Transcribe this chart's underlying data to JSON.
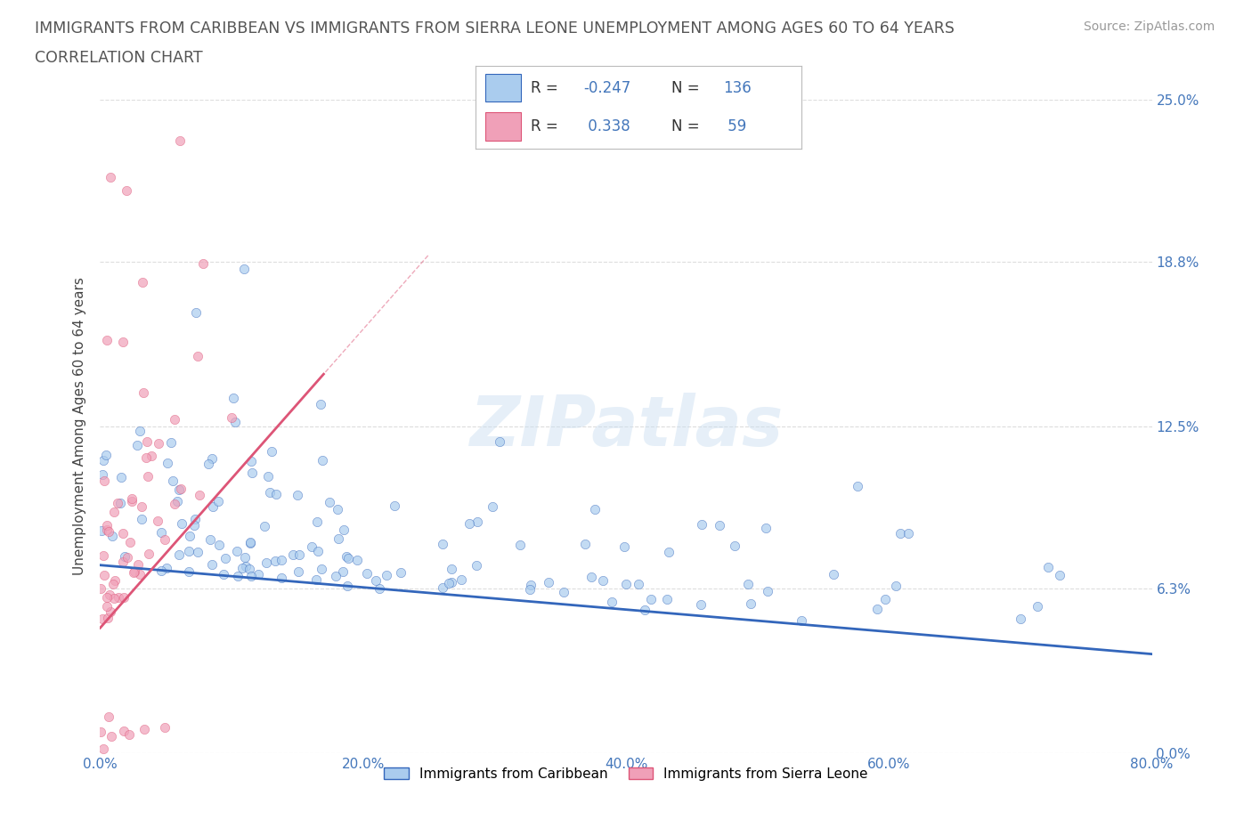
{
  "title_line1": "IMMIGRANTS FROM CARIBBEAN VS IMMIGRANTS FROM SIERRA LEONE UNEMPLOYMENT AMONG AGES 60 TO 64 YEARS",
  "title_line2": "CORRELATION CHART",
  "source": "Source: ZipAtlas.com",
  "ylabel": "Unemployment Among Ages 60 to 64 years",
  "xlim": [
    0,
    0.8
  ],
  "ylim": [
    0,
    0.25
  ],
  "yticks": [
    0.0,
    0.063,
    0.125,
    0.188,
    0.25
  ],
  "ytick_labels": [
    "0.0%",
    "6.3%",
    "12.5%",
    "18.8%",
    "25.0%"
  ],
  "xticks": [
    0.0,
    0.2,
    0.4,
    0.6,
    0.8
  ],
  "xtick_labels": [
    "0.0%",
    "20.0%",
    "40.0%",
    "60.0%",
    "80.0%"
  ],
  "caribbean_color": "#aaccee",
  "sierraleone_color": "#f0a0b8",
  "trend_caribbean_color": "#3366bb",
  "trend_sierraleone_color": "#dd5577",
  "R_caribbean": -0.247,
  "N_caribbean": 136,
  "R_sierraleone": 0.338,
  "N_sierraleone": 59,
  "watermark": "ZIPatlas",
  "background_color": "#ffffff",
  "grid_color": "#dddddd",
  "axis_label_color": "#4477bb",
  "title_color": "#555555",
  "legend_label_caribbean": "Immigrants from Caribbean",
  "legend_label_sierraleone": "Immigrants from Sierra Leone",
  "caribbean_trend_start_x": 0.0,
  "caribbean_trend_start_y": 0.072,
  "caribbean_trend_end_x": 0.8,
  "caribbean_trend_end_y": 0.038,
  "sierraleone_trend_start_x": 0.0,
  "sierraleone_trend_start_y": 0.048,
  "sierraleone_trend_end_x": 0.17,
  "sierraleone_trend_end_y": 0.145
}
